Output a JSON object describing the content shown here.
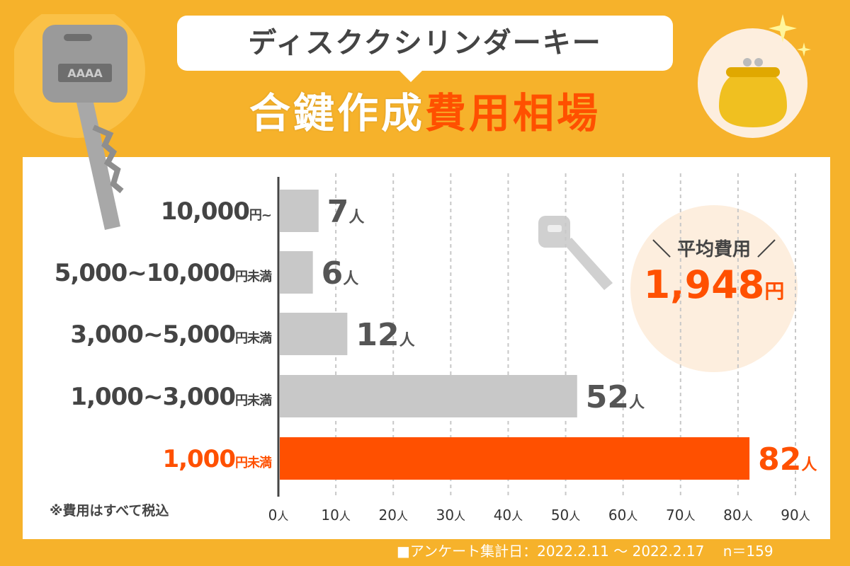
{
  "header": {
    "title": "ディスククシリンダーキー",
    "subtitle_part1": "合鍵作成",
    "subtitle_part2": "費用相場"
  },
  "key_tag_text": "AAAA",
  "average": {
    "label": "＼ 平均費用 ／",
    "value": "1,948",
    "unit": "円"
  },
  "note": "※費用はすべて税込",
  "footer": "■アンケート集計日：2022.2.11 〜 2022.2.17　 n＝159",
  "colors": {
    "background": "#f6b22b",
    "highlight": "#ff5000",
    "bar_gray": "#c8c8c8",
    "text_gray": "#555555"
  },
  "chart_data": {
    "type": "bar",
    "orientation": "horizontal",
    "categories": [
      {
        "main": "10,000",
        "suffix": "円~"
      },
      {
        "main": "5,000~10,000",
        "suffix": "円未満"
      },
      {
        "main": "3,000~5,000",
        "suffix": "円未満"
      },
      {
        "main": "1,000~3,000",
        "suffix": "円未満"
      },
      {
        "main": "1,000",
        "suffix": "円未満"
      }
    ],
    "values": [
      7,
      6,
      12,
      52,
      82
    ],
    "value_unit": "人",
    "highlight_index": 4,
    "xlim": [
      0,
      90
    ],
    "xticks": [
      0,
      10,
      20,
      30,
      40,
      50,
      60,
      70,
      80,
      90
    ],
    "tick_unit": "人",
    "grid": true
  }
}
